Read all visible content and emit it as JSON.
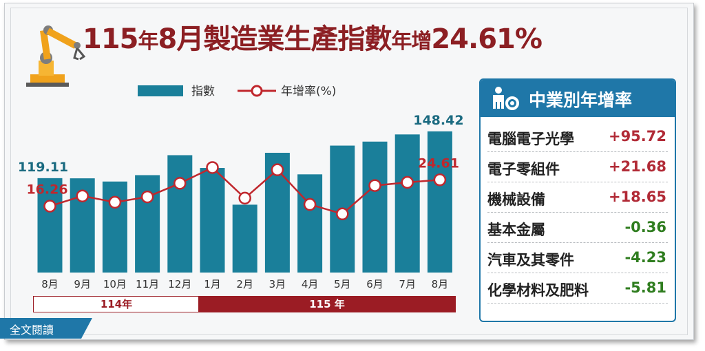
{
  "title": {
    "part1": "115",
    "part2": "年",
    "part3": "8月製造業生產指數",
    "part4": "年增",
    "part5": "24.61%"
  },
  "legend": {
    "bar_label": "指數",
    "line_label": "年增率(%)"
  },
  "colors": {
    "bar": "#1a7f9a",
    "line": "#c0272d",
    "title": "#8c1f23",
    "positive": "#b12a36",
    "negative": "#2f7d1f",
    "panel": "#1f77a8"
  },
  "chart_data": {
    "type": "bar",
    "categories": [
      "8月",
      "9月",
      "10月",
      "11月",
      "12月",
      "1月",
      "2月",
      "3月",
      "4月",
      "5月",
      "6月",
      "7月",
      "8月"
    ],
    "series": [
      {
        "name": "指數",
        "type": "bar",
        "values": [
          119.11,
          119.0,
          117.0,
          121.0,
          133.5,
          125.5,
          102.5,
          135.0,
          121.5,
          139.5,
          142.0,
          146.5,
          148.42
        ]
      },
      {
        "name": "年增率(%)",
        "type": "line",
        "values": [
          16.26,
          19.5,
          17.5,
          19.2,
          23.5,
          28.5,
          18.8,
          27.8,
          16.8,
          13.8,
          22.8,
          23.8,
          24.61
        ]
      }
    ],
    "data_labels": {
      "first_bar": "119.11",
      "last_bar": "148.42",
      "first_line": "16.26",
      "last_line": "24.61"
    },
    "groups": [
      {
        "label": "114年",
        "span": 5
      },
      {
        "label": "115 年",
        "span": 8
      }
    ]
  },
  "panel": {
    "title": "中業別年增率",
    "rows": [
      {
        "name": "電腦電子光學",
        "value": "+95.72",
        "sign": "pos"
      },
      {
        "name": "電子零組件",
        "value": "+21.68",
        "sign": "pos"
      },
      {
        "name": "機械設備",
        "value": "+18.65",
        "sign": "pos"
      },
      {
        "name": "基本金屬",
        "value": "-0.36",
        "sign": "neg"
      },
      {
        "name": "汽車及其零件",
        "value": "-4.23",
        "sign": "neg"
      },
      {
        "name": "化學材料及肥料",
        "value": "-5.81",
        "sign": "neg"
      }
    ]
  },
  "read_all": "全文閱讀"
}
